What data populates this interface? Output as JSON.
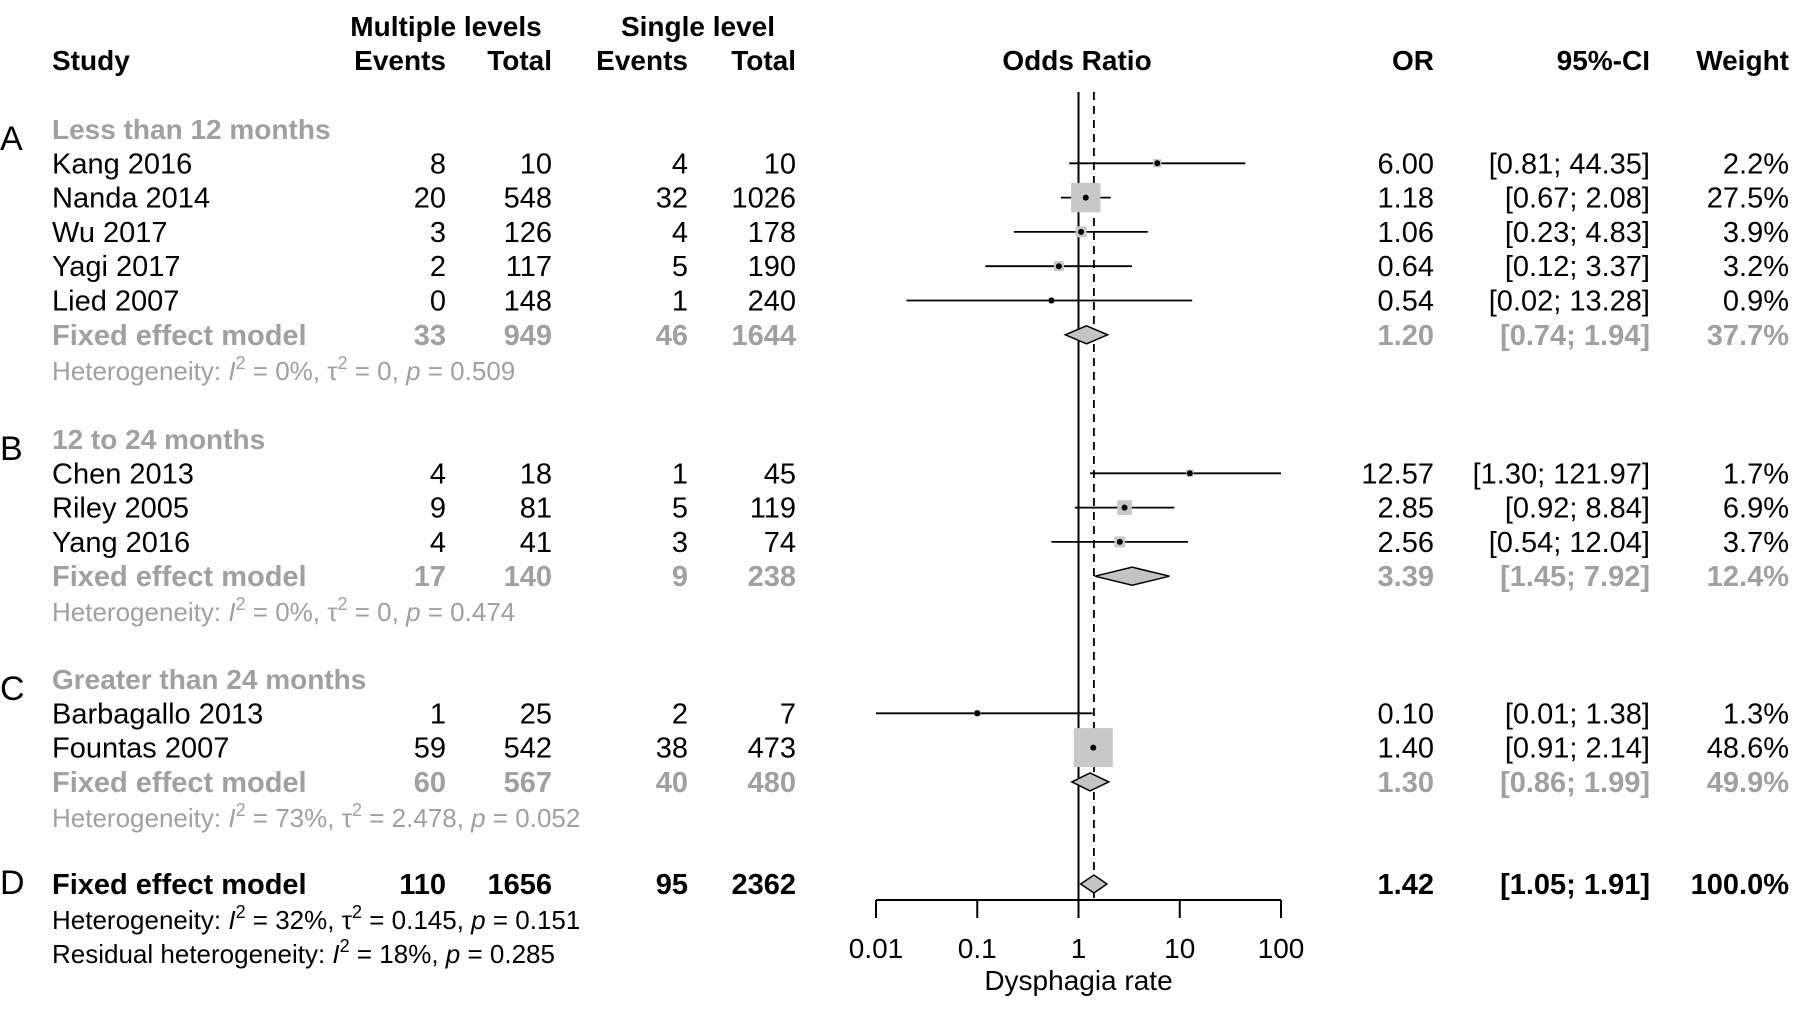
{
  "header": {
    "study": "Study",
    "group1": "Multiple levels",
    "group2": "Single level",
    "events": "Events",
    "total": "Total",
    "odds_ratio": "Odds Ratio",
    "or": "OR",
    "ci": "95%-CI",
    "weight": "Weight"
  },
  "colors": {
    "text": "#000000",
    "summary_text": "#a0a0a0",
    "diamond_fill": "#c4c4c4",
    "box_fill": "#c8c8c8"
  },
  "chart_data": {
    "type": "forest",
    "xlabel": "Dysphagia rate",
    "x_scale": "log",
    "xlim": [
      0.01,
      100
    ],
    "x_ticks": [
      "0.01",
      "0.1",
      "1",
      "10",
      "100"
    ],
    "reference_line": 1,
    "overall_dashed_line": 1.42,
    "subgroups": [
      {
        "label": "A",
        "title": "Less than 12 months",
        "studies": [
          {
            "name": "Kang 2016",
            "e1": "8",
            "n1": "10",
            "e2": "4",
            "n2": "10",
            "or": 6.0,
            "lo": 0.81,
            "hi": 44.35,
            "or_text": "6.00",
            "ci_text": "[0.81; 44.35]",
            "weight": 2.2,
            "weight_text": "2.2%"
          },
          {
            "name": "Nanda 2014",
            "e1": "20",
            "n1": "548",
            "e2": "32",
            "n2": "1026",
            "or": 1.18,
            "lo": 0.67,
            "hi": 2.08,
            "or_text": "1.18",
            "ci_text": "[0.67; 2.08]",
            "weight": 27.5,
            "weight_text": "27.5%"
          },
          {
            "name": "Wu 2017",
            "e1": "3",
            "n1": "126",
            "e2": "4",
            "n2": "178",
            "or": 1.06,
            "lo": 0.23,
            "hi": 4.83,
            "or_text": "1.06",
            "ci_text": "[0.23; 4.83]",
            "weight": 3.9,
            "weight_text": "3.9%"
          },
          {
            "name": "Yagi 2017",
            "e1": "2",
            "n1": "117",
            "e2": "5",
            "n2": "190",
            "or": 0.64,
            "lo": 0.12,
            "hi": 3.37,
            "or_text": "0.64",
            "ci_text": "[0.12; 3.37]",
            "weight": 3.2,
            "weight_text": "3.2%"
          },
          {
            "name": "Lied 2007",
            "e1": "0",
            "n1": "148",
            "e2": "1",
            "n2": "240",
            "or": 0.54,
            "lo": 0.02,
            "hi": 13.28,
            "or_text": "0.54",
            "ci_text": "[0.02; 13.28]",
            "weight": 0.9,
            "weight_text": "0.9%"
          }
        ],
        "summary": {
          "name": "Fixed effect model",
          "e1": "33",
          "n1": "949",
          "e2": "46",
          "n2": "1644",
          "or": 1.2,
          "lo": 0.74,
          "hi": 1.94,
          "or_text": "1.20",
          "ci_text": "[0.74; 1.94]",
          "weight_text": "37.7%"
        },
        "heterogeneity": {
          "prefix": "Heterogeneity: ",
          "i2": "= 0%, ",
          "tau2": "= 0, ",
          "p": "= 0.509"
        }
      },
      {
        "label": "B",
        "title": "12 to 24 months",
        "studies": [
          {
            "name": "Chen 2013",
            "e1": "4",
            "n1": "18",
            "e2": "1",
            "n2": "45",
            "or": 12.57,
            "lo": 1.3,
            "hi": 121.97,
            "or_text": "12.57",
            "ci_text": "[1.30; 121.97]",
            "weight": 1.7,
            "weight_text": "1.7%"
          },
          {
            "name": "Riley 2005",
            "e1": "9",
            "n1": "81",
            "e2": "5",
            "n2": "119",
            "or": 2.85,
            "lo": 0.92,
            "hi": 8.84,
            "or_text": "2.85",
            "ci_text": "[0.92; 8.84]",
            "weight": 6.9,
            "weight_text": "6.9%"
          },
          {
            "name": "Yang 2016",
            "e1": "4",
            "n1": "41",
            "e2": "3",
            "n2": "74",
            "or": 2.56,
            "lo": 0.54,
            "hi": 12.04,
            "or_text": "2.56",
            "ci_text": "[0.54; 12.04]",
            "weight": 3.7,
            "weight_text": "3.7%"
          }
        ],
        "summary": {
          "name": "Fixed effect model",
          "e1": "17",
          "n1": "140",
          "e2": "9",
          "n2": "238",
          "or": 3.39,
          "lo": 1.45,
          "hi": 7.92,
          "or_text": "3.39",
          "ci_text": "[1.45; 7.92]",
          "weight_text": "12.4%"
        },
        "heterogeneity": {
          "prefix": "Heterogeneity: ",
          "i2": "= 0%, ",
          "tau2": "= 0, ",
          "p": "= 0.474"
        }
      },
      {
        "label": "C",
        "title": "Greater than 24 months",
        "studies": [
          {
            "name": "Barbagallo 2013",
            "e1": "1",
            "n1": "25",
            "e2": "2",
            "n2": "7",
            "or": 0.1,
            "lo": 0.01,
            "hi": 1.38,
            "or_text": "0.10",
            "ci_text": "[0.01; 1.38]",
            "weight": 1.3,
            "weight_text": "1.3%"
          },
          {
            "name": "Fountas 2007",
            "e1": "59",
            "n1": "542",
            "e2": "38",
            "n2": "473",
            "or": 1.4,
            "lo": 0.91,
            "hi": 2.14,
            "or_text": "1.40",
            "ci_text": "[0.91; 2.14]",
            "weight": 48.6,
            "weight_text": "48.6%"
          }
        ],
        "summary": {
          "name": "Fixed effect model",
          "e1": "60",
          "n1": "567",
          "e2": "40",
          "n2": "480",
          "or": 1.3,
          "lo": 0.86,
          "hi": 1.99,
          "or_text": "1.30",
          "ci_text": "[0.86; 1.99]",
          "weight_text": "49.9%"
        },
        "heterogeneity": {
          "prefix": "Heterogeneity: ",
          "i2": "= 73%, ",
          "tau2": "= 2.478, ",
          "p": "= 0.052"
        }
      }
    ],
    "overall": {
      "label": "D",
      "name": "Fixed effect model",
      "e1": "110",
      "n1": "1656",
      "e2": "95",
      "n2": "2362",
      "or": 1.42,
      "lo": 1.05,
      "hi": 1.91,
      "or_text": "1.42",
      "ci_text": "[1.05; 1.91]",
      "weight_text": "100.0%",
      "heterogeneity": {
        "prefix": "Heterogeneity: ",
        "i2": "= 32%, ",
        "tau2": "= 0.145, ",
        "p": "= 0.151"
      },
      "residual": {
        "prefix": "Residual heterogeneity: ",
        "i2": "= 18%, ",
        "p": "= 0.285"
      }
    }
  }
}
